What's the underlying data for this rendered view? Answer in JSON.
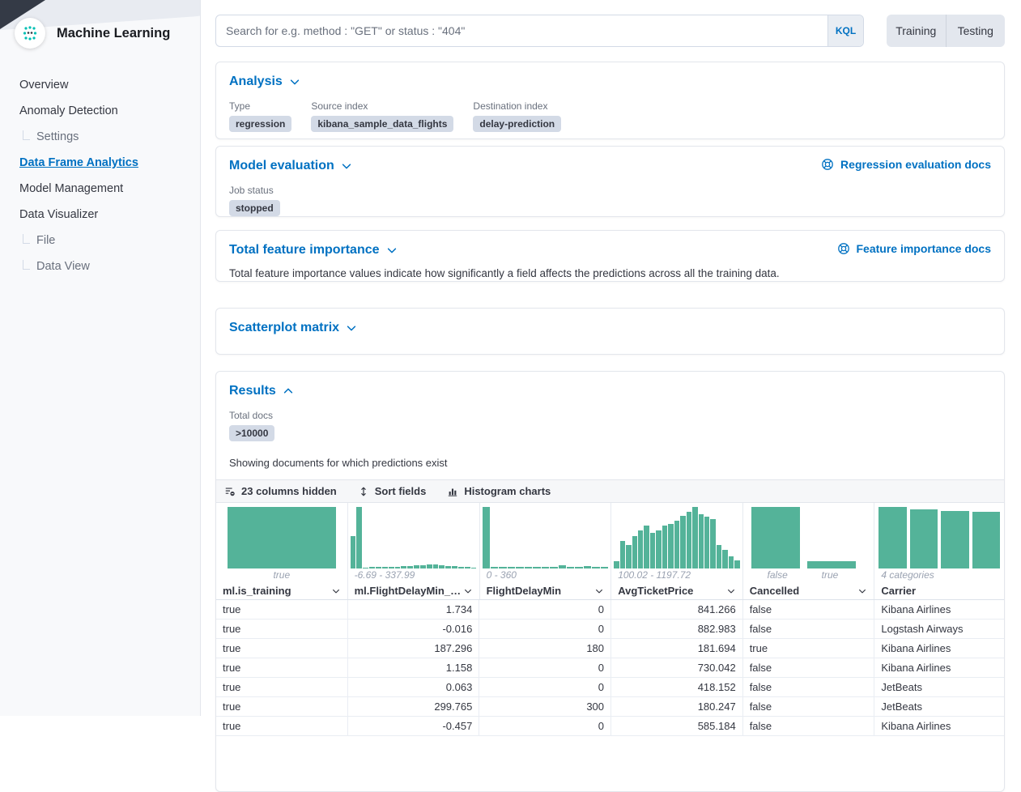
{
  "app": {
    "title": "Machine Learning"
  },
  "sidebar": {
    "items": [
      {
        "label": "Overview",
        "sub": false,
        "active": false
      },
      {
        "label": "Anomaly Detection",
        "sub": false,
        "active": false
      },
      {
        "label": "Settings",
        "sub": true,
        "active": false
      },
      {
        "label": "Data Frame Analytics",
        "sub": false,
        "active": true
      },
      {
        "label": "Model Management",
        "sub": false,
        "active": false
      },
      {
        "label": "Data Visualizer",
        "sub": false,
        "active": false
      },
      {
        "label": "File",
        "sub": true,
        "active": false
      },
      {
        "label": "Data View",
        "sub": true,
        "active": false
      }
    ]
  },
  "topbar": {
    "search_placeholder": "Search for e.g. method : \"GET\" or status : \"404\"",
    "kql_label": "KQL",
    "view_toggle": [
      "Training",
      "Testing"
    ]
  },
  "sections": {
    "analysis": {
      "title": "Analysis",
      "fields": [
        {
          "label": "Type",
          "value": "regression"
        },
        {
          "label": "Source index",
          "value": "kibana_sample_data_flights"
        },
        {
          "label": "Destination index",
          "value": "delay-prediction"
        }
      ]
    },
    "model_evaluation": {
      "title": "Model evaluation",
      "docs_link": "Regression evaluation docs",
      "job_status_label": "Job status",
      "job_status": "stopped"
    },
    "feature_importance": {
      "title": "Total feature importance",
      "docs_link": "Feature importance docs",
      "description": "Total feature importance values indicate how significantly a field affects the predictions across all the training data."
    },
    "scatterplot": {
      "title": "Scatterplot matrix"
    },
    "results": {
      "title": "Results",
      "total_docs_label": "Total docs",
      "total_docs": ">10000",
      "subtitle": "Showing documents for which predictions exist",
      "toolbar": {
        "columns_hidden": "23 columns hidden",
        "sort_fields": "Sort fields",
        "histogram_charts": "Histogram charts"
      }
    }
  },
  "grid": {
    "columns": [
      {
        "name": "ml.is_training",
        "range_label": "true",
        "sortable": true,
        "align": "left"
      },
      {
        "name": "ml.FlightDelayMin_prediction",
        "range_label": "-6.69 - 337.99",
        "sortable": true,
        "align": "right"
      },
      {
        "name": "FlightDelayMin",
        "range_label": "0 - 360",
        "sortable": true,
        "align": "right"
      },
      {
        "name": "AvgTicketPrice",
        "range_label": "100.02 - 1197.72",
        "sortable": true,
        "align": "right"
      },
      {
        "name": "Cancelled",
        "labels": [
          "false",
          "true"
        ],
        "sortable": true,
        "align": "left"
      },
      {
        "name": "Carrier",
        "range_label": "4 categories",
        "sortable": false,
        "align": "left"
      }
    ],
    "rows": [
      [
        "true",
        "1.734",
        "0",
        "841.266",
        "false",
        "Kibana Airlines"
      ],
      [
        "true",
        "-0.016",
        "0",
        "882.983",
        "false",
        "Logstash Airways"
      ],
      [
        "true",
        "187.296",
        "180",
        "181.694",
        "true",
        "Kibana Airlines"
      ],
      [
        "true",
        "1.158",
        "0",
        "730.042",
        "false",
        "Kibana Airlines"
      ],
      [
        "true",
        "0.063",
        "0",
        "418.152",
        "false",
        "JetBeats"
      ],
      [
        "true",
        "299.765",
        "300",
        "180.247",
        "false",
        "JetBeats"
      ],
      [
        "true",
        "-0.457",
        "0",
        "585.184",
        "false",
        "Kibana Airlines"
      ]
    ]
  },
  "chart_data": [
    {
      "type": "bar",
      "title": "ml.is_training histogram",
      "categories": [
        "true"
      ],
      "values": [
        100
      ]
    },
    {
      "type": "bar",
      "title": "ml.FlightDelayMin_prediction histogram",
      "xlabel": "-6.69 - 337.99",
      "values": [
        52,
        100,
        1,
        2,
        2,
        3,
        3,
        3,
        4,
        4,
        5,
        5,
        6,
        6,
        5,
        4,
        4,
        3,
        2,
        1
      ]
    },
    {
      "type": "bar",
      "title": "FlightDelayMin histogram",
      "xlabel": "0 - 360",
      "values": [
        100,
        2,
        2,
        3,
        2,
        2,
        3,
        2,
        2,
        5,
        3,
        3,
        4,
        2,
        2
      ]
    },
    {
      "type": "bar",
      "title": "AvgTicketPrice histogram",
      "xlabel": "100.02 - 1197.72",
      "values": [
        12,
        45,
        38,
        52,
        62,
        70,
        58,
        62,
        70,
        73,
        78,
        85,
        92,
        100,
        88,
        84,
        80,
        38,
        30,
        20,
        13
      ]
    },
    {
      "type": "bar",
      "title": "Cancelled histogram",
      "categories": [
        "false",
        "true"
      ],
      "values": [
        100,
        12
      ]
    },
    {
      "type": "bar",
      "title": "Carrier histogram",
      "xlabel": "4 categories",
      "values": [
        100,
        96,
        93,
        92
      ]
    }
  ],
  "colors": {
    "accent_blue": "#0071c2",
    "vis_green": "#54b399",
    "badge_bg": "#d3dae6",
    "text": "#343741",
    "muted": "#69707d"
  }
}
